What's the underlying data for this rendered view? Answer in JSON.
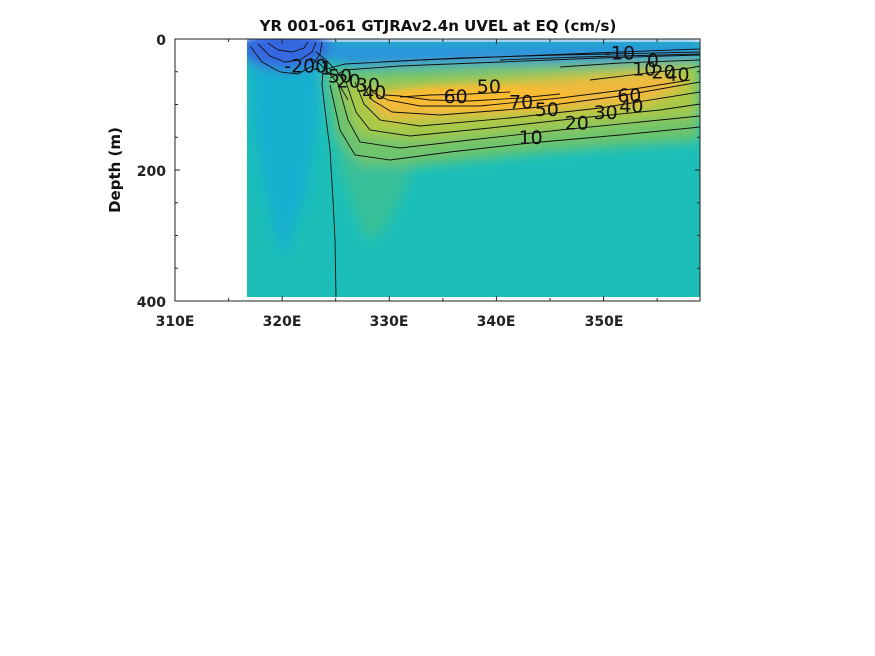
{
  "chart_data": {
    "type": "contour",
    "title": "YR 001-061 GTJRAv2.4n UVEL at EQ (cm/s)",
    "xlabel": "",
    "ylabel": "Depth (m)",
    "x_ticks": [
      "310E",
      "320E",
      "330E",
      "340E",
      "350E"
    ],
    "x_tick_values": [
      310,
      320,
      330,
      340,
      350
    ],
    "y_ticks": [
      "0",
      "200",
      "400"
    ],
    "y_tick_values": [
      0,
      200,
      400
    ],
    "xlim": [
      310,
      359
    ],
    "ylim": [
      400,
      0
    ],
    "y_reversed": true,
    "colormap": "parula",
    "grid": false,
    "colors": {
      "strong_negative": "#3b6fdd",
      "weak_negative": "#1aa9cf",
      "background": "#1cbfb8",
      "weak_positive": "#4fc38a",
      "moderate_positive": "#9bc94a",
      "strong_positive": "#f7b93a",
      "land": "#ffffff"
    },
    "contour_labels": [
      {
        "text": "-200",
        "x": 322.2,
        "y": 43
      },
      {
        "text": "-10",
        "x": 351.5,
        "y": 23
      },
      {
        "text": "0",
        "x": 354.6,
        "y": 34
      },
      {
        "text": "10",
        "x": 353.8,
        "y": 47
      },
      {
        "text": "20",
        "x": 355.6,
        "y": 52
      },
      {
        "text": "40",
        "x": 356.9,
        "y": 56
      },
      {
        "text": "-1",
        "x": 323.8,
        "y": 46
      },
      {
        "text": "50",
        "x": 325.4,
        "y": 58
      },
      {
        "text": "20",
        "x": 326.2,
        "y": 66
      },
      {
        "text": "30",
        "x": 328.0,
        "y": 72
      },
      {
        "text": "40",
        "x": 328.6,
        "y": 83
      },
      {
        "text": "60",
        "x": 336.2,
        "y": 89
      },
      {
        "text": "50",
        "x": 339.3,
        "y": 74
      },
      {
        "text": "70",
        "x": 342.3,
        "y": 98
      },
      {
        "text": "50",
        "x": 344.7,
        "y": 109
      },
      {
        "text": "60",
        "x": 352.4,
        "y": 88
      },
      {
        "text": "40",
        "x": 352.6,
        "y": 104
      },
      {
        "text": "30",
        "x": 350.2,
        "y": 114
      },
      {
        "text": "20",
        "x": 347.5,
        "y": 130
      },
      {
        "text": "10",
        "x": 343.2,
        "y": 152
      }
    ]
  }
}
